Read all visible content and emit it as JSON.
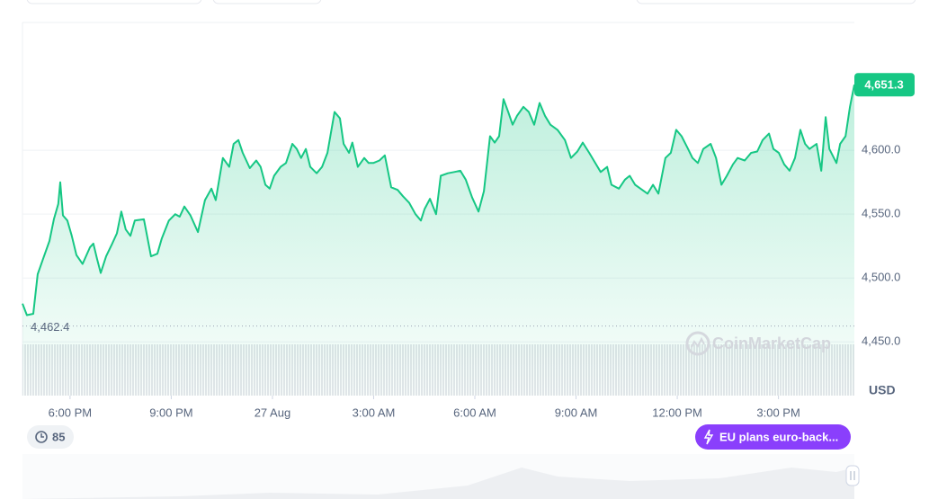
{
  "chart_data": {
    "type": "line",
    "color": "#16c784",
    "x": [
      -1.41,
      -1.28,
      -1.09,
      -0.96,
      -0.8,
      -0.61,
      -0.48,
      -0.35,
      -0.29,
      -0.21,
      -0.08,
      0.05,
      0.19,
      0.37,
      0.59,
      0.69,
      0.8,
      0.91,
      1.07,
      1.25,
      1.39,
      1.52,
      1.65,
      1.79,
      1.92,
      2.19,
      2.27,
      2.4,
      2.59,
      2.72,
      2.93,
      3.12,
      3.25,
      3.39,
      3.57,
      3.79,
      4.0,
      4.19,
      4.32,
      4.53,
      4.72,
      4.85,
      4.99,
      5.12,
      5.33,
      5.52,
      5.65,
      5.79,
      5.92,
      6.05,
      6.24,
      6.4,
      6.59,
      6.72,
      6.85,
      6.99,
      7.12,
      7.31,
      7.47,
      7.63,
      7.84,
      8.0,
      8.11,
      8.27,
      8.37,
      8.53,
      8.72,
      8.85,
      8.99,
      9.17,
      9.33,
      9.52,
      9.71,
      9.87,
      10.05,
      10.24,
      10.4,
      10.51,
      10.67,
      10.85,
      10.99,
      11.2,
      11.39,
      11.57,
      11.73,
      11.92,
      12.11,
      12.27,
      12.45,
      12.59,
      12.72,
      12.85,
      12.99,
      13.12,
      13.25,
      13.44,
      13.6,
      13.76,
      13.92,
      14.08,
      14.24,
      14.45,
      14.67,
      14.85,
      15.04,
      15.2,
      15.39,
      15.57,
      15.73,
      15.92,
      16.05,
      16.27,
      16.45,
      16.59,
      16.75,
      16.91,
      17.12,
      17.28,
      17.44,
      17.65,
      17.81,
      17.97,
      18.13,
      18.32,
      18.45,
      18.61,
      18.77,
      18.99,
      19.15,
      19.31,
      19.47,
      19.65,
      19.79,
      20.0,
      20.19,
      20.37,
      20.53,
      20.72,
      20.85,
      21.01,
      21.17,
      21.33,
      21.49,
      21.65,
      21.79,
      21.92,
      22.13,
      22.27,
      22.4,
      22.51,
      22.72,
      22.83,
      22.99,
      23.12,
      23.25
    ],
    "values": [
      4480,
      4471,
      4472,
      4503,
      4515,
      4529,
      4546,
      4558,
      4575,
      4549,
      4545,
      4533,
      4518,
      4511,
      4524,
      4527,
      4515,
      4504,
      4517,
      4527,
      4535,
      4552,
      4538,
      4533,
      4545,
      4546,
      4535,
      4517,
      4519,
      4531,
      4545,
      4550,
      4548,
      4556,
      4549,
      4536,
      4561,
      4570,
      4561,
      4594,
      4587,
      4605,
      4608,
      4598,
      4586,
      4592,
      4587,
      4573,
      4570,
      4580,
      4587,
      4590,
      4605,
      4601,
      4594,
      4601,
      4587,
      4582,
      4587,
      4598,
      4630,
      4625,
      4605,
      4598,
      4606,
      4587,
      4594,
      4590,
      4590,
      4592,
      4596,
      4571,
      4569,
      4564,
      4559,
      4550,
      4545,
      4554,
      4562,
      4550,
      4580,
      4582,
      4583,
      4584,
      4577,
      4563,
      4552,
      4568,
      4611,
      4606,
      4611,
      4640,
      4630,
      4620,
      4627,
      4634,
      4630,
      4620,
      4637,
      4627,
      4620,
      4616,
      4608,
      4594,
      4599,
      4606,
      4598,
      4590,
      4583,
      4587,
      4573,
      4570,
      4577,
      4580,
      4573,
      4570,
      4566,
      4573,
      4566,
      4594,
      4598,
      4616,
      4611,
      4601,
      4594,
      4590,
      4601,
      4605,
      4594,
      4573,
      4580,
      4589,
      4594,
      4592,
      4598,
      4599,
      4608,
      4613,
      4601,
      4598,
      4589,
      4584,
      4594,
      4616,
      4605,
      4601,
      4605,
      4584,
      4626,
      4601,
      4590,
      4605,
      4611,
      4634,
      4651.3
    ],
    "xlim": [
      -1.41,
      23.25
    ],
    "ylim": [
      4408,
      4700
    ],
    "xticks": [
      {
        "value": 0,
        "label": "6:00 PM"
      },
      {
        "value": 3,
        "label": "9:00 PM"
      },
      {
        "value": 6,
        "label": "27 Aug"
      },
      {
        "value": 9,
        "label": "3:00 AM"
      },
      {
        "value": 12,
        "label": "6:00 AM"
      },
      {
        "value": 15,
        "label": "9:00 AM"
      },
      {
        "value": 18,
        "label": "12:00 PM"
      },
      {
        "value": 21,
        "label": "3:00 PM"
      }
    ],
    "yticks": [
      {
        "value": 4450,
        "label": "4,450.0"
      },
      {
        "value": 4500,
        "label": "4,500.0"
      },
      {
        "value": 4550,
        "label": "4,550.0"
      },
      {
        "value": 4600,
        "label": "4,600.0"
      }
    ],
    "grid": true,
    "currency": "USD",
    "open_price": {
      "value": 4462.4,
      "label": "4,462.4"
    },
    "last_price": {
      "value": 4651.3,
      "label": "4,651.3"
    },
    "watermark": "CoinMarketCap",
    "history_badge": 85,
    "news": "EU plans euro-back..."
  }
}
